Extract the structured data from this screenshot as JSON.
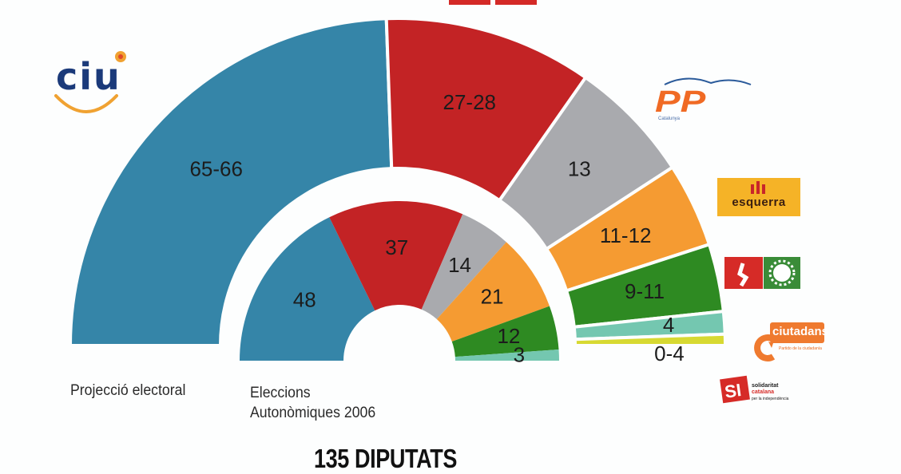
{
  "chart_data": {
    "type": "pie",
    "subtype": "double semicircle (parliament hemicycle) donut",
    "title": "135 DIPUTATS",
    "rings": [
      {
        "name": "Projecció electoral",
        "position": "outer",
        "series": [
          {
            "party": "CiU",
            "label": "65-66",
            "value_low": 65,
            "value_high": 66,
            "color": "#3585a8"
          },
          {
            "party": "PSC",
            "label": "27-28",
            "value_low": 27,
            "value_high": 28,
            "color": "#c32325"
          },
          {
            "party": "PP",
            "label": "13",
            "value_low": 13,
            "value_high": 13,
            "color": "#a9aaae"
          },
          {
            "party": "ERC (esquerra)",
            "label": "11-12",
            "value_low": 11,
            "value_high": 12,
            "color": "#f59b32"
          },
          {
            "party": "ICV-EUiA",
            "label": "9-11",
            "value_low": 9,
            "value_high": 11,
            "color": "#2e8a22"
          },
          {
            "party": "Ciutadans",
            "label": "4",
            "value_low": 4,
            "value_high": 4,
            "color": "#74c7b0"
          },
          {
            "party": "Solidaritat Catalana",
            "label": "0-4",
            "value_low": 0,
            "value_high": 4,
            "color": "#d7d932"
          }
        ]
      },
      {
        "name": "Eleccions Autonòmiques 2006",
        "position": "inner",
        "series": [
          {
            "party": "CiU",
            "label": "48",
            "value": 48,
            "color": "#3585a8"
          },
          {
            "party": "PSC",
            "label": "37",
            "value": 37,
            "color": "#c32325"
          },
          {
            "party": "PP",
            "label": "14",
            "value": 14,
            "color": "#a9aaae"
          },
          {
            "party": "ERC (esquerra)",
            "label": "21",
            "value": 21,
            "color": "#f59b32"
          },
          {
            "party": "ICV-EUiA",
            "label": "12",
            "value": 12,
            "color": "#2e8a22"
          },
          {
            "party": "Ciutadans",
            "label": "3",
            "value": 3,
            "color": "#74c7b0"
          }
        ]
      }
    ],
    "total_seats": 135,
    "legend_position": "right (party logos)"
  },
  "captions": {
    "outer": "Projecció electoral",
    "inner_line1": "Eleccions",
    "inner_line2": "Autonòmiques 2006",
    "total": "135 DIPUTATS"
  },
  "logos": {
    "ciu": {
      "text": "CiU"
    },
    "pp": {
      "text": "PP",
      "sub": "Catalunya"
    },
    "erc": {
      "text": "esquerra"
    },
    "icv": {
      "text": "ICV-EUiA"
    },
    "cs": {
      "text": "ciutadans",
      "sub": "Partido de la ciudadanía"
    },
    "si": {
      "line1": "solidaritat",
      "line2": "catalana",
      "line3": "per la independència"
    }
  }
}
